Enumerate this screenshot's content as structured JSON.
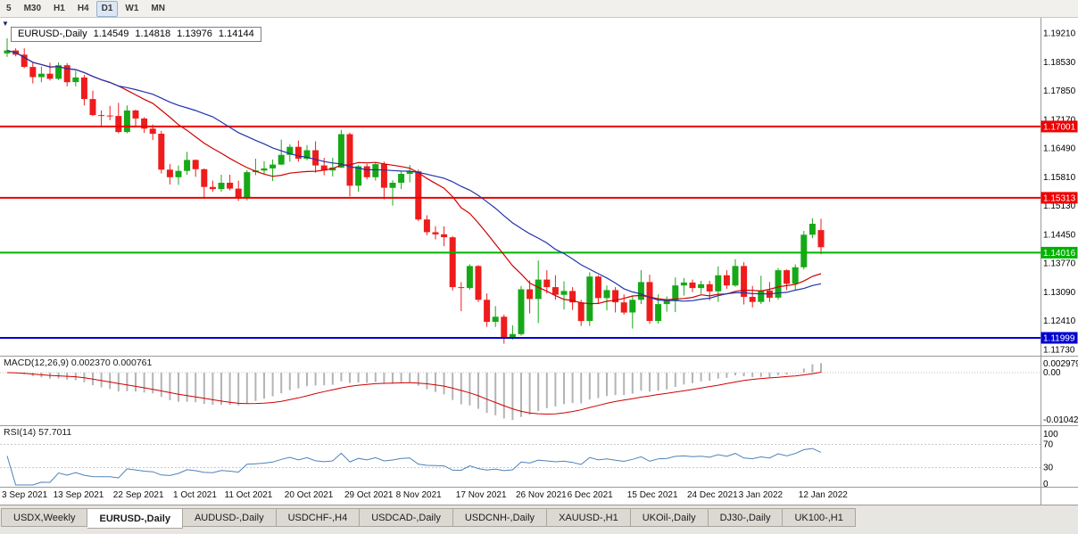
{
  "toolbar": {
    "timeframes": [
      "5",
      "M30",
      "H1",
      "H4",
      "D1",
      "W1",
      "MN"
    ],
    "active_timeframe": "D1"
  },
  "chart_header": {
    "expander_icon": "▼",
    "symbol": "EURUSD-,Daily",
    "open": "1.14549",
    "high": "1.14818",
    "low": "1.13976",
    "close": "1.14144"
  },
  "price_scale": {
    "labels": [
      "1.19210",
      "1.18530",
      "1.17850",
      "1.17170",
      "1.16490",
      "1.15810",
      "1.15130",
      "1.14450",
      "1.13770",
      "1.13090",
      "1.12410",
      "1.11730"
    ]
  },
  "hlines": [
    {
      "value": 1.17001,
      "label": "1.17001",
      "color": "#ee0000"
    },
    {
      "value": 1.15313,
      "label": "1.15313",
      "color": "#ee0000"
    },
    {
      "value": 1.14016,
      "label": "1.14016",
      "color": "#00b300"
    },
    {
      "value": 1.11999,
      "label": "1.11999",
      "color": "#0000d0"
    }
  ],
  "macd": {
    "label": "MACD(12,26,9) 0.002370 0.000761",
    "fast": 12,
    "slow": 26,
    "signal": 9,
    "scale_labels": [
      "0.002979",
      "0.00",
      "-0.010422"
    ]
  },
  "rsi": {
    "label": "RSI(14) 57.7011",
    "period": 14,
    "levels": [
      70,
      30
    ],
    "scale_labels": [
      "100",
      "70",
      "30",
      "0"
    ]
  },
  "tabs": [
    {
      "label": "USDX,Weekly",
      "active": false
    },
    {
      "label": "EURUSD-,Daily",
      "active": true
    },
    {
      "label": "AUDUSD-,Daily",
      "active": false
    },
    {
      "label": "USDCHF-,H4",
      "active": false
    },
    {
      "label": "USDCAD-,Daily",
      "active": false
    },
    {
      "label": "USDCNH-,Daily",
      "active": false
    },
    {
      "label": "XAUUSD-,H1",
      "active": false
    },
    {
      "label": "UKOil-,Daily",
      "active": false
    },
    {
      "label": "DJ30-,Daily",
      "active": false
    },
    {
      "label": "UK100-,H1",
      "active": false
    }
  ],
  "chart_data": {
    "type": "candlestick",
    "symbol": "EURUSD",
    "timeframe": "Daily",
    "y_range": [
      1.1162,
      1.1953
    ],
    "colors": {
      "bull": "#17a817",
      "bear": "#ee1c1c",
      "ma_fast": "#d00000",
      "ma_slow": "#2233aa",
      "macd_hist": "#b4b4b4",
      "macd_signal": "#d00000",
      "rsi": "#4d82b8"
    },
    "overlays": [
      {
        "type": "sma",
        "period": 14,
        "color_key": "ma_fast"
      },
      {
        "type": "sma",
        "period": 25,
        "color_key": "ma_slow"
      }
    ],
    "x_labels": [
      {
        "i": 0,
        "text": "3 Sep 2021"
      },
      {
        "i": 6,
        "text": "13 Sep 2021"
      },
      {
        "i": 13,
        "text": "22 Sep 2021"
      },
      {
        "i": 20,
        "text": "1 Oct 2021"
      },
      {
        "i": 26,
        "text": "11 Oct 2021"
      },
      {
        "i": 33,
        "text": "20 Oct 2021"
      },
      {
        "i": 40,
        "text": "29 Oct 2021"
      },
      {
        "i": 46,
        "text": "8 Nov 2021"
      },
      {
        "i": 53,
        "text": "17 Nov 2021"
      },
      {
        "i": 60,
        "text": "26 Nov 2021"
      },
      {
        "i": 66,
        "text": "6 Dec 2021"
      },
      {
        "i": 73,
        "text": "15 Dec 2021"
      },
      {
        "i": 80,
        "text": "24 Dec 2021"
      },
      {
        "i": 86,
        "text": "3 Jan 2022"
      },
      {
        "i": 93,
        "text": "12 Jan 2022"
      }
    ],
    "candles": [
      [
        1.1873,
        1.1909,
        1.1865,
        1.188
      ],
      [
        1.188,
        1.1885,
        1.1866,
        1.187
      ],
      [
        1.187,
        1.1885,
        1.1838,
        1.1841
      ],
      [
        1.1841,
        1.1852,
        1.1802,
        1.1817
      ],
      [
        1.1817,
        1.1842,
        1.1805,
        1.1825
      ],
      [
        1.1825,
        1.1851,
        1.1809,
        1.1813
      ],
      [
        1.1813,
        1.1852,
        1.181,
        1.1845
      ],
      [
        1.1845,
        1.185,
        1.1795,
        1.1805
      ],
      [
        1.1805,
        1.1832,
        1.1795,
        1.1816
      ],
      [
        1.1816,
        1.1822,
        1.175,
        1.1765
      ],
      [
        1.1765,
        1.1785,
        1.1725,
        1.1727
      ],
      [
        1.1727,
        1.1738,
        1.17,
        1.1726
      ],
      [
        1.1726,
        1.1749,
        1.1715,
        1.1725
      ],
      [
        1.1725,
        1.1756,
        1.1684,
        1.1687
      ],
      [
        1.1687,
        1.175,
        1.1684,
        1.1738
      ],
      [
        1.1738,
        1.174,
        1.1701,
        1.1719
      ],
      [
        1.1719,
        1.1722,
        1.1685,
        1.1695
      ],
      [
        1.1695,
        1.1705,
        1.1668,
        1.1683
      ],
      [
        1.1683,
        1.169,
        1.1589,
        1.1598
      ],
      [
        1.1598,
        1.1611,
        1.1563,
        1.158
      ],
      [
        1.158,
        1.1608,
        1.1562,
        1.1595
      ],
      [
        1.1595,
        1.164,
        1.1586,
        1.1621
      ],
      [
        1.1621,
        1.1622,
        1.1581,
        1.1599
      ],
      [
        1.1599,
        1.1601,
        1.1529,
        1.1557
      ],
      [
        1.1557,
        1.1572,
        1.1546,
        1.1552
      ],
      [
        1.1552,
        1.1586,
        1.1546,
        1.1567
      ],
      [
        1.1567,
        1.1586,
        1.1549,
        1.1553
      ],
      [
        1.1553,
        1.1572,
        1.1524,
        1.153
      ],
      [
        1.153,
        1.1597,
        1.1525,
        1.1592
      ],
      [
        1.1592,
        1.1624,
        1.1585,
        1.1596
      ],
      [
        1.1596,
        1.1618,
        1.1588,
        1.1601
      ],
      [
        1.1601,
        1.1622,
        1.1571,
        1.161
      ],
      [
        1.161,
        1.1669,
        1.1609,
        1.1633
      ],
      [
        1.1633,
        1.1658,
        1.1617,
        1.1652
      ],
      [
        1.1652,
        1.1667,
        1.1617,
        1.1624
      ],
      [
        1.1624,
        1.1656,
        1.162,
        1.1644
      ],
      [
        1.1644,
        1.1665,
        1.1591,
        1.1608
      ],
      [
        1.1608,
        1.1626,
        1.1585,
        1.1596
      ],
      [
        1.1596,
        1.1626,
        1.1582,
        1.1603
      ],
      [
        1.1603,
        1.1692,
        1.1602,
        1.1682
      ],
      [
        1.1682,
        1.1686,
        1.1535,
        1.156
      ],
      [
        1.156,
        1.1609,
        1.1546,
        1.1606
      ],
      [
        1.1606,
        1.1612,
        1.1575,
        1.158
      ],
      [
        1.158,
        1.1616,
        1.1572,
        1.1611
      ],
      [
        1.1611,
        1.1617,
        1.1528,
        1.1555
      ],
      [
        1.1555,
        1.1573,
        1.1513,
        1.1567
      ],
      [
        1.1567,
        1.1594,
        1.1552,
        1.1588
      ],
      [
        1.1588,
        1.1609,
        1.1568,
        1.1594
      ],
      [
        1.1594,
        1.1598,
        1.1476,
        1.148
      ],
      [
        1.148,
        1.149,
        1.1443,
        1.145
      ],
      [
        1.145,
        1.1464,
        1.1433,
        1.1445
      ],
      [
        1.1445,
        1.1464,
        1.1417,
        1.1438
      ],
      [
        1.1438,
        1.1441,
        1.1312,
        1.132
      ],
      [
        1.132,
        1.1332,
        1.1263,
        1.1318
      ],
      [
        1.1318,
        1.1374,
        1.1314,
        1.137
      ],
      [
        1.137,
        1.1372,
        1.1285,
        1.129
      ],
      [
        1.129,
        1.1305,
        1.1226,
        1.1238
      ],
      [
        1.1238,
        1.1275,
        1.1226,
        1.125
      ],
      [
        1.125,
        1.1255,
        1.1186,
        1.12
      ],
      [
        1.12,
        1.123,
        1.1196,
        1.1209
      ],
      [
        1.1209,
        1.1323,
        1.1205,
        1.1315
      ],
      [
        1.1315,
        1.1336,
        1.1258,
        1.1292
      ],
      [
        1.1292,
        1.1383,
        1.1235,
        1.1338
      ],
      [
        1.1338,
        1.136,
        1.1305,
        1.132
      ],
      [
        1.132,
        1.1348,
        1.129,
        1.1302
      ],
      [
        1.1302,
        1.1334,
        1.1267,
        1.1311
      ],
      [
        1.1311,
        1.132,
        1.1266,
        1.1284
      ],
      [
        1.1284,
        1.129,
        1.1228,
        1.124
      ],
      [
        1.124,
        1.1355,
        1.1228,
        1.1345
      ],
      [
        1.1345,
        1.1348,
        1.128,
        1.1294
      ],
      [
        1.1294,
        1.1324,
        1.1265,
        1.1313
      ],
      [
        1.1313,
        1.132,
        1.126,
        1.1284
      ],
      [
        1.1284,
        1.1303,
        1.1255,
        1.126
      ],
      [
        1.126,
        1.1298,
        1.1222,
        1.129
      ],
      [
        1.129,
        1.136,
        1.128,
        1.1332
      ],
      [
        1.1332,
        1.1349,
        1.1233,
        1.124
      ],
      [
        1.124,
        1.1303,
        1.1234,
        1.128
      ],
      [
        1.128,
        1.1298,
        1.1262,
        1.1288
      ],
      [
        1.1288,
        1.1343,
        1.1261,
        1.1324
      ],
      [
        1.1324,
        1.1342,
        1.13,
        1.1331
      ],
      [
        1.1331,
        1.1338,
        1.1308,
        1.1318
      ],
      [
        1.1318,
        1.1335,
        1.1304,
        1.1327
      ],
      [
        1.1327,
        1.1335,
        1.1289,
        1.131
      ],
      [
        1.131,
        1.1369,
        1.1285,
        1.1348
      ],
      [
        1.1348,
        1.136,
        1.1316,
        1.1324
      ],
      [
        1.1324,
        1.1386,
        1.1321,
        1.137
      ],
      [
        1.137,
        1.1379,
        1.1279,
        1.1297
      ],
      [
        1.1297,
        1.1323,
        1.1272,
        1.1285
      ],
      [
        1.1285,
        1.1347,
        1.128,
        1.1312
      ],
      [
        1.1312,
        1.1332,
        1.1285,
        1.1295
      ],
      [
        1.1295,
        1.1365,
        1.129,
        1.136
      ],
      [
        1.136,
        1.1362,
        1.1313,
        1.1328
      ],
      [
        1.1328,
        1.1374,
        1.1314,
        1.1367
      ],
      [
        1.1367,
        1.1453,
        1.1362,
        1.1444
      ],
      [
        1.1444,
        1.1483,
        1.1436,
        1.147
      ],
      [
        1.14549,
        1.14818,
        1.13976,
        1.14144
      ]
    ]
  }
}
